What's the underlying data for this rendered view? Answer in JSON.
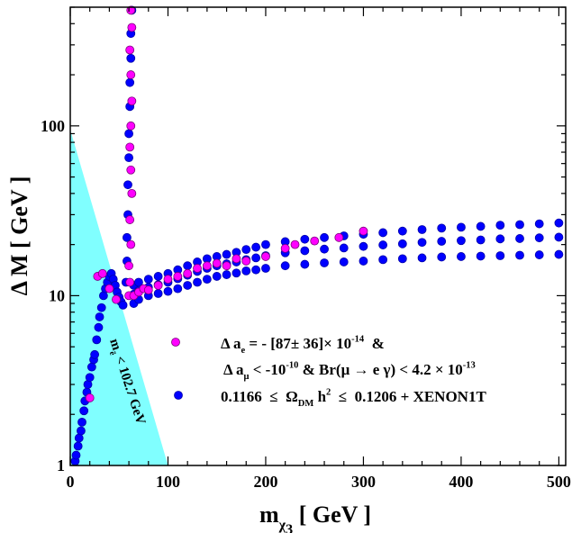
{
  "chart_data": {
    "type": "scatter",
    "x_label": [
      {
        "text": "m"
      },
      {
        "text": "χ",
        "shift": "sub"
      },
      {
        "text": "3",
        "shift": "subsub"
      },
      {
        "text": " [ GeV ]"
      }
    ],
    "y_label": [
      {
        "text": "Δ M [ GeV ]"
      }
    ],
    "xlim": [
      0,
      507
    ],
    "ylim": [
      1,
      500
    ],
    "log_y": true,
    "xticks": [
      0,
      100,
      200,
      300,
      400,
      500
    ],
    "xminor_ticks": [
      20,
      40,
      60,
      80,
      120,
      140,
      160,
      180,
      220,
      240,
      260,
      280,
      320,
      340,
      360,
      380,
      420,
      440,
      460,
      480
    ],
    "yticks": [
      1,
      10,
      100
    ],
    "yminor_ticks": [
      2,
      3,
      4,
      5,
      6,
      7,
      8,
      9,
      20,
      30,
      40,
      50,
      60,
      70,
      80,
      90,
      200,
      300,
      400,
      500
    ],
    "region": {
      "x": [
        0,
        100
      ],
      "y": [
        95,
        1
      ],
      "color": "#80ffff"
    },
    "annotation": [
      {
        "text": "m"
      },
      {
        "text": "ẽ",
        "shift": "sub"
      },
      {
        "text": " < 102.7 GeV"
      }
    ],
    "series": [
      {
        "label_lines": [
          [
            {
              "text": "0.1166  ≤  Ω"
            },
            {
              "text": "DM",
              "shift": "sub"
            },
            {
              "text": " h"
            },
            {
              "text": "2",
              "shift": "sup"
            },
            {
              "text": "  ≤  0.1206 + XENON1T"
            }
          ]
        ],
        "color": "#0000ff",
        "edge": "#0000aa",
        "x": [
          5,
          6,
          8,
          9,
          11,
          12,
          14,
          15,
          17,
          18,
          20,
          22,
          24,
          25,
          27,
          29,
          30,
          32,
          34,
          36,
          38,
          40,
          42,
          44,
          46,
          48,
          50,
          52,
          54,
          57,
          58,
          58,
          59,
          59,
          60,
          60,
          61,
          61,
          62,
          62,
          63,
          65,
          65,
          65,
          70,
          70,
          70,
          80,
          80,
          80,
          90,
          90,
          90,
          100,
          100,
          100,
          110,
          110,
          110,
          120,
          120,
          120,
          130,
          130,
          130,
          140,
          140,
          140,
          150,
          150,
          150,
          160,
          160,
          160,
          170,
          170,
          170,
          180,
          180,
          180,
          190,
          190,
          190,
          200,
          200,
          200,
          220,
          220,
          220,
          240,
          240,
          240,
          260,
          260,
          260,
          280,
          280,
          280,
          300,
          300,
          300,
          320,
          320,
          320,
          340,
          340,
          340,
          360,
          360,
          360,
          380,
          380,
          380,
          400,
          400,
          400,
          420,
          420,
          420,
          440,
          440,
          440,
          460,
          460,
          460,
          480,
          480,
          480,
          500,
          500,
          500
        ],
        "y": [
          1.06,
          1.15,
          1.3,
          1.45,
          1.6,
          1.8,
          2.1,
          2.4,
          2.7,
          3.0,
          3.3,
          3.8,
          4.2,
          4.5,
          5.5,
          6.5,
          7.5,
          8.5,
          10,
          11,
          12,
          13,
          13.5,
          12.5,
          11.5,
          10.5,
          9.8,
          9.2,
          8.8,
          12,
          16,
          22,
          30,
          45,
          65,
          90,
          130,
          180,
          250,
          350,
          480,
          9,
          10.2,
          11.5,
          9.5,
          10.7,
          12,
          10,
          11.2,
          12.5,
          10.3,
          11.6,
          13,
          10.6,
          12,
          13.5,
          11,
          12.6,
          14.2,
          11.5,
          13.2,
          15,
          12,
          13.9,
          15.8,
          12.5,
          14.5,
          16.5,
          13,
          15,
          17,
          13.3,
          15.4,
          17.5,
          13.6,
          15.8,
          18,
          14,
          16.3,
          18.7,
          14.2,
          16.7,
          19.3,
          14.5,
          17.2,
          20,
          15,
          17.9,
          20.8,
          15.3,
          18.4,
          21.5,
          15.6,
          18.8,
          22,
          15.8,
          19.1,
          22.5,
          16,
          19.5,
          23,
          16.3,
          19.9,
          23.5,
          16.5,
          20.2,
          24,
          16.7,
          20.6,
          24.5,
          16.9,
          20.9,
          25,
          17,
          21.1,
          25.3,
          17.1,
          21.3,
          25.6,
          17.2,
          21.6,
          26,
          17.3,
          21.7,
          26.2,
          17.4,
          21.9,
          26.5,
          17.5,
          22.1,
          26.8
        ]
      },
      {
        "label_lines": [
          [
            {
              "text": "Δ a"
            },
            {
              "text": "e",
              "shift": "sub"
            },
            {
              "text": " = - [87± 36]× 10"
            },
            {
              "text": "-14",
              "shift": "sup"
            },
            {
              "text": "  &"
            }
          ],
          [
            {
              "text": "Δ a"
            },
            {
              "text": "μ",
              "shift": "sub"
            },
            {
              "text": " < -10"
            },
            {
              "text": "-10",
              "shift": "sup"
            },
            {
              "text": " & Br(μ → e γ) < 4.2 × 10"
            },
            {
              "text": "-13",
              "shift": "sup"
            }
          ]
        ],
        "color": "#ff00ff",
        "edge": "#7a007a",
        "x": [
          60,
          61,
          60,
          62,
          61,
          63,
          62,
          61,
          62,
          63,
          62,
          61,
          63,
          62,
          20,
          28,
          33,
          40,
          47,
          65,
          70,
          75,
          80,
          90,
          100,
          110,
          120,
          130,
          140,
          150,
          160,
          170,
          180,
          200,
          220,
          230,
          250,
          275,
          300
        ],
        "y": [
          10,
          12,
          15,
          20,
          28,
          40,
          55,
          75,
          100,
          140,
          200,
          280,
          380,
          480,
          2.5,
          13,
          13.5,
          11,
          9.5,
          10,
          10.5,
          11,
          10.8,
          11.5,
          12.5,
          13,
          13.5,
          14.5,
          15,
          15.5,
          15,
          16.5,
          16,
          17,
          19,
          20,
          21,
          22,
          24
        ]
      }
    ]
  }
}
